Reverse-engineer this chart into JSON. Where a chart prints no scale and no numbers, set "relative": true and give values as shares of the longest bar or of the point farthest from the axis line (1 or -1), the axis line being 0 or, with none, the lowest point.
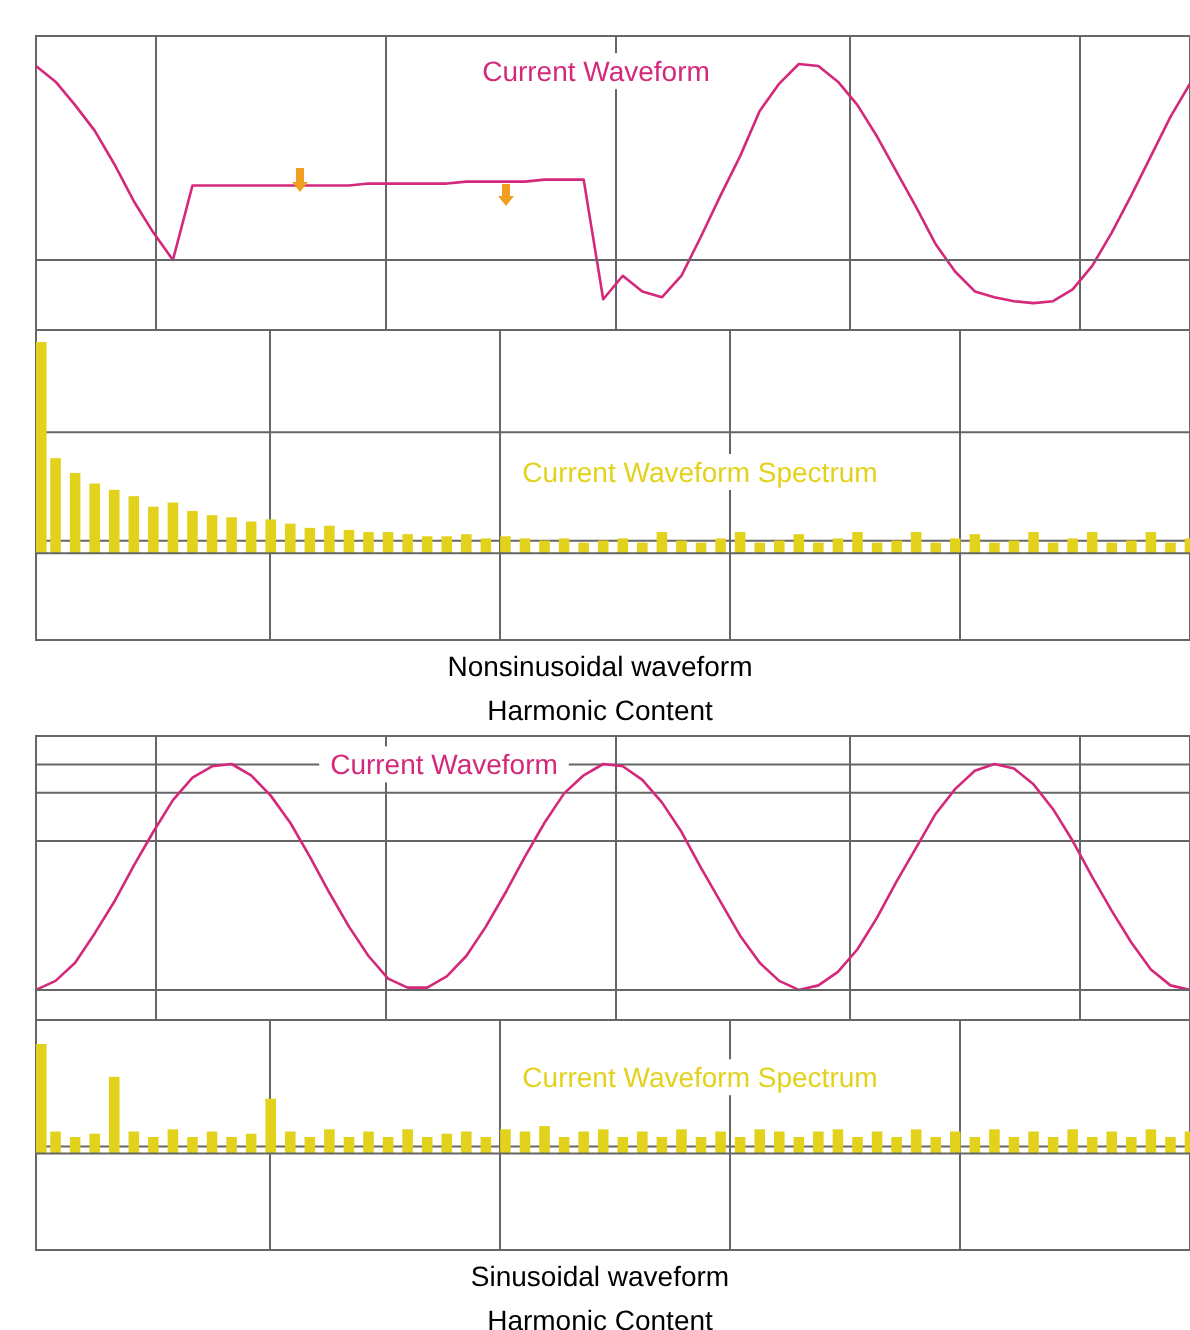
{
  "chart_data": [
    {
      "type": "line",
      "title": "Current Waveform",
      "color": "#d4287a",
      "relative": true,
      "grid": true,
      "categories": [
        null,
        null,
        null,
        null,
        null,
        null,
        null,
        null,
        null,
        null,
        null,
        null,
        null,
        null,
        null,
        null,
        null,
        null,
        null,
        null,
        null,
        null,
        null,
        null,
        null,
        null,
        null,
        null,
        null,
        null,
        null,
        null,
        null,
        null,
        null,
        null,
        null,
        null,
        null,
        null,
        null,
        null,
        null,
        null,
        null,
        null,
        null,
        null,
        null,
        null,
        null,
        null,
        null,
        null,
        null,
        null,
        null,
        null,
        null,
        null
      ],
      "values": [
        0.99,
        0.91,
        0.79,
        0.66,
        0.49,
        0.3,
        0.14,
        0,
        0.38,
        0.38,
        0.38,
        0.38,
        0.38,
        0.38,
        0.38,
        0.38,
        0.38,
        0.39,
        0.39,
        0.39,
        0.39,
        0.39,
        0.4,
        0.4,
        0.4,
        0.4,
        0.41,
        0.41,
        0.41,
        -0.2,
        -0.08,
        -0.16,
        -0.19,
        -0.08,
        0.12,
        0.33,
        0.53,
        0.76,
        0.9,
        1,
        0.99,
        0.91,
        0.79,
        0.63,
        0.45,
        0.27,
        0.08,
        -0.06,
        -0.16,
        -0.19,
        -0.21,
        -0.22,
        -0.21,
        -0.15,
        -0.03,
        0.14,
        0.33,
        0.53,
        0.73,
        0.9
      ]
    },
    {
      "type": "bar",
      "title": "Current Waveform Spectrum",
      "color": "#e2d21c",
      "relative": true,
      "grid": true,
      "annotations": [
        "Nonsinusoidal waveform",
        "Harmonic Content"
      ],
      "categories": [
        null,
        null,
        null,
        null,
        null,
        null,
        null,
        null,
        null,
        null,
        null,
        null,
        null,
        null,
        null,
        null,
        null,
        null,
        null,
        null,
        null,
        null,
        null,
        null,
        null,
        null,
        null,
        null,
        null,
        null,
        null,
        null,
        null,
        null,
        null,
        null,
        null,
        null,
        null,
        null,
        null,
        null,
        null,
        null,
        null,
        null,
        null,
        null,
        null,
        null,
        null,
        null,
        null,
        null,
        null,
        null,
        null,
        null,
        null,
        null
      ],
      "values": [
        1,
        0.45,
        0.38,
        0.33,
        0.3,
        0.27,
        0.22,
        0.24,
        0.2,
        0.18,
        0.17,
        0.15,
        0.16,
        0.14,
        0.12,
        0.13,
        0.11,
        0.1,
        0.1,
        0.09,
        0.08,
        0.08,
        0.09,
        0.07,
        0.08,
        0.07,
        0.06,
        0.07,
        0.05,
        0.06,
        0.07,
        0.05,
        0.1,
        0.06,
        0.05,
        0.07,
        0.1,
        0.05,
        0.06,
        0.09,
        0.05,
        0.07,
        0.1,
        0.05,
        0.06,
        0.1,
        0.05,
        0.07,
        0.09,
        0.05,
        0.06,
        0.1,
        0.05,
        0.07,
        0.1,
        0.05,
        0.06,
        0.1,
        0.05,
        0.07
      ]
    },
    {
      "type": "line",
      "title": "Current Waveform",
      "color": "#d4287a",
      "relative": true,
      "grid": true,
      "categories": [
        null,
        null,
        null,
        null,
        null,
        null,
        null,
        null,
        null,
        null,
        null,
        null,
        null,
        null,
        null,
        null,
        null,
        null,
        null,
        null,
        null,
        null,
        null,
        null,
        null,
        null,
        null,
        null,
        null,
        null,
        null,
        null,
        null,
        null,
        null,
        null,
        null,
        null,
        null,
        null,
        null,
        null,
        null,
        null,
        null,
        null,
        null,
        null,
        null,
        null,
        null,
        null,
        null,
        null,
        null,
        null,
        null,
        null,
        null,
        null
      ],
      "values": [
        0,
        0.04,
        0.12,
        0.25,
        0.39,
        0.55,
        0.7,
        0.84,
        0.94,
        0.99,
        1,
        0.95,
        0.86,
        0.74,
        0.59,
        0.43,
        0.28,
        0.15,
        0.05,
        0.01,
        0.01,
        0.06,
        0.15,
        0.28,
        0.43,
        0.59,
        0.74,
        0.87,
        0.95,
        1,
        0.99,
        0.93,
        0.83,
        0.7,
        0.54,
        0.39,
        0.24,
        0.12,
        0.04,
        0,
        0.02,
        0.08,
        0.18,
        0.32,
        0.48,
        0.63,
        0.78,
        0.89,
        0.97,
        1,
        0.98,
        0.91,
        0.8,
        0.66,
        0.5,
        0.35,
        0.21,
        0.09,
        0.02,
        0
      ]
    },
    {
      "type": "bar",
      "title": "Current Waveform Spectrum",
      "color": "#e2d21c",
      "relative": true,
      "grid": true,
      "annotations": [
        "Sinusoidal waveform",
        "Harmonic Content"
      ],
      "categories": [
        null,
        null,
        null,
        null,
        null,
        null,
        null,
        null,
        null,
        null,
        null,
        null,
        null,
        null,
        null,
        null,
        null,
        null,
        null,
        null,
        null,
        null,
        null,
        null,
        null,
        null,
        null,
        null,
        null,
        null,
        null,
        null,
        null,
        null,
        null,
        null,
        null,
        null,
        null,
        null,
        null,
        null,
        null,
        null,
        null,
        null,
        null,
        null,
        null,
        null,
        null,
        null,
        null,
        null,
        null,
        null,
        null,
        null,
        null,
        null
      ],
      "values": [
        1,
        0.2,
        0.15,
        0.18,
        0.7,
        0.2,
        0.15,
        0.22,
        0.15,
        0.2,
        0.15,
        0.18,
        0.5,
        0.2,
        0.15,
        0.22,
        0.15,
        0.2,
        0.15,
        0.22,
        0.15,
        0.18,
        0.2,
        0.15,
        0.22,
        0.2,
        0.25,
        0.15,
        0.2,
        0.22,
        0.15,
        0.2,
        0.15,
        0.22,
        0.15,
        0.2,
        0.15,
        0.22,
        0.2,
        0.15,
        0.2,
        0.22,
        0.15,
        0.2,
        0.15,
        0.22,
        0.15,
        0.2,
        0.15,
        0.22,
        0.15,
        0.2,
        0.15,
        0.22,
        0.15,
        0.2,
        0.15,
        0.22,
        0.15,
        0.2
      ]
    }
  ]
}
